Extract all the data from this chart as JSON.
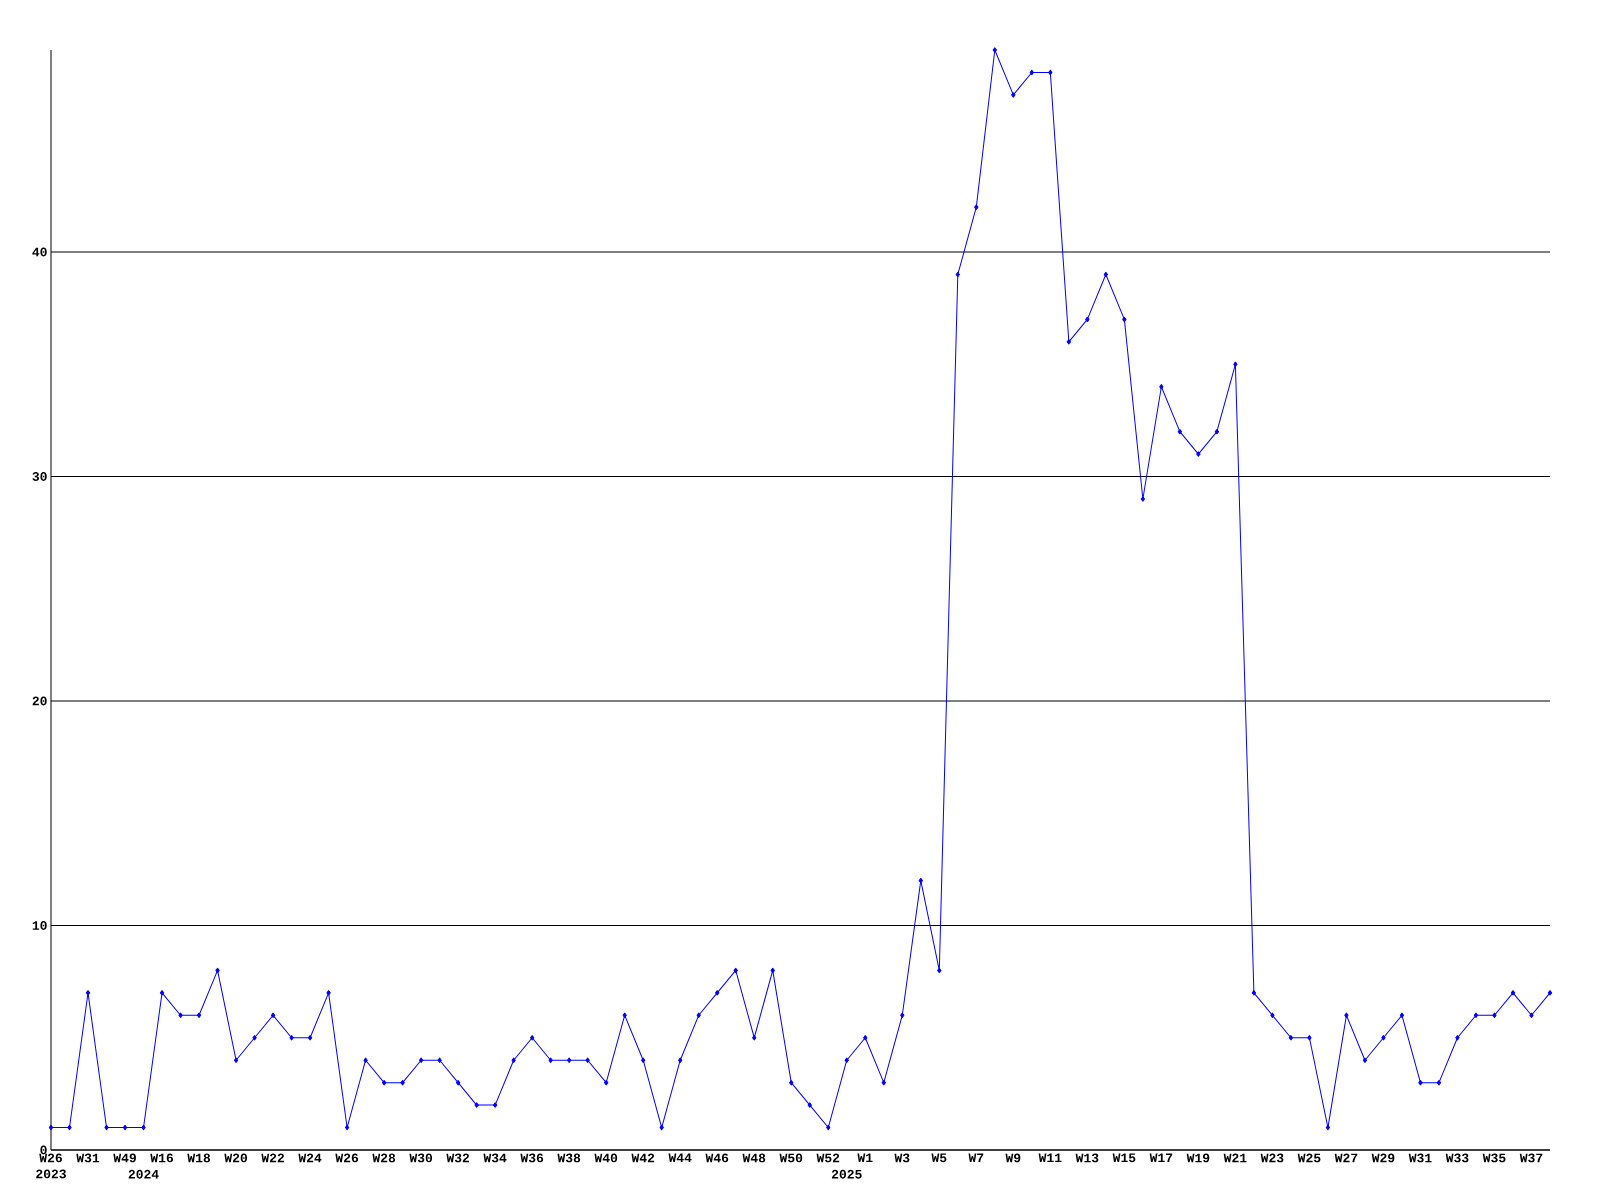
{
  "chart_data": {
    "type": "line",
    "categories": [
      "W26 2023",
      null,
      "W31",
      null,
      "W49",
      "2024",
      "W16",
      null,
      "W18",
      null,
      "W20",
      null,
      "W22",
      null,
      "W24",
      null,
      "W26",
      null,
      "W28",
      null,
      "W30",
      null,
      "W32",
      null,
      "W34",
      null,
      "W36",
      null,
      "W38",
      null,
      "W40",
      null,
      "W42",
      null,
      "W44",
      null,
      "W46",
      null,
      "W48",
      null,
      "W50",
      null,
      "W52",
      "2025",
      "W1",
      null,
      "W3",
      null,
      "W5",
      null,
      "W7",
      null,
      "W9",
      null,
      "W11",
      null,
      "W13",
      null,
      "W15",
      null,
      "W17",
      null,
      "W19",
      null,
      "W21",
      null,
      "W23",
      null,
      "W25",
      null,
      "W27",
      null,
      "W29",
      null,
      "W31",
      null,
      "W33",
      null,
      "W35",
      null,
      "W37",
      null
    ],
    "series": [
      {
        "color": "#0000ff",
        "values": [
          1,
          1,
          7,
          1,
          1,
          1,
          7,
          6,
          6,
          8,
          4,
          5,
          6,
          5,
          5,
          7,
          1,
          4,
          3,
          3,
          4,
          4,
          3,
          2,
          2,
          4,
          5,
          4,
          4,
          4,
          3,
          6,
          4,
          1,
          4,
          6,
          7,
          8,
          5,
          8,
          3,
          2,
          1,
          4,
          5,
          3,
          6,
          12,
          8,
          39,
          42,
          49,
          47,
          48,
          48,
          36,
          37,
          39,
          37,
          29,
          34,
          32,
          31,
          32,
          35,
          7,
          6,
          5,
          5,
          1,
          6,
          4,
          5,
          6,
          3,
          3,
          5,
          6,
          6,
          7,
          6,
          7
        ]
      }
    ],
    "ylim": [
      0,
      49
    ],
    "yticks": [
      0,
      10,
      20,
      30,
      40
    ],
    "grid": "y",
    "marker": "diamond",
    "line_style": "solid"
  }
}
